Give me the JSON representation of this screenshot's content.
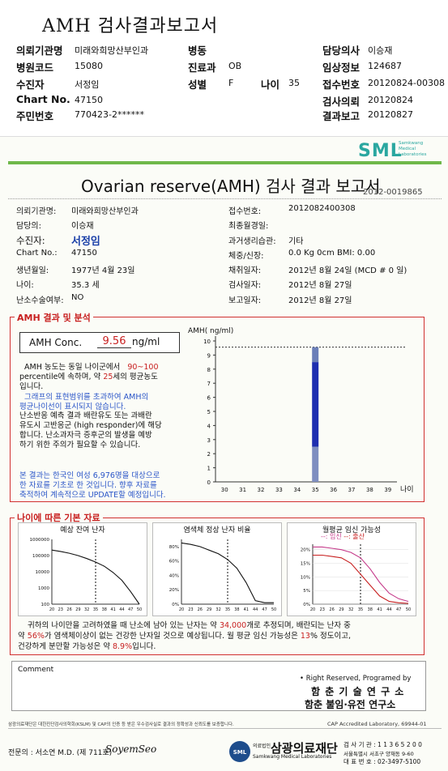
{
  "header": {
    "title": "AMH 검사결과보고서",
    "rows": [
      {
        "l1": "의뢰기관명",
        "v1": "미래와희망산부인과",
        "l2": "병동",
        "v2": "",
        "l4": "담당의사",
        "v4": "이승재"
      },
      {
        "l1": "병원코드",
        "v1": "15080",
        "l2": "진료과",
        "v2": "OB",
        "l4": "임상정보",
        "v4": "124687"
      },
      {
        "l1": "수진자",
        "v1": "서정임",
        "l2": "성별",
        "v2": "F",
        "l3": "나이",
        "v3": "35",
        "l4": "접수번호",
        "v4": "20120824-00308"
      },
      {
        "l1": "Chart No.",
        "v1": "47150",
        "l4": "검사의뢰",
        "v4": "20120824"
      },
      {
        "l1": "주민번호",
        "v1": "770423-2******",
        "l4": "결과보고",
        "v4": "20120827"
      }
    ]
  },
  "report": {
    "logo": "SML",
    "logo_sub": [
      "Samkwang",
      "Medical",
      "Laboratories"
    ],
    "title": "Ovarian reserve(AMH) 검사 결과 보고서",
    "number": "2012-0019865",
    "left_info": [
      {
        "k": "의뢰기관명:",
        "v": "미래와희망산부인과"
      },
      {
        "k": "담당의:",
        "v": "이승재"
      },
      {
        "k": "수진자:",
        "v": "서정임"
      },
      {
        "k": "Chart No.:",
        "v": "47150"
      },
      {
        "k": "생년월일:",
        "v": "1977년 4월 23일"
      },
      {
        "k": "나이:",
        "v": "35.3 세"
      },
      {
        "k": "난소수술여부:",
        "v": "NO"
      }
    ],
    "right_info": [
      {
        "k": "접수번호:",
        "v": "2012082400308"
      },
      {
        "k": "최종월경일:",
        "v": ""
      },
      {
        "k": "과거생리습관:",
        "v": "기타"
      },
      {
        "k": "체중/신장:",
        "v": "0.0 Kg        0cm    BMI:    0.00"
      },
      {
        "k": "채취일자:",
        "v": "2012년 8월 24일    (MCD # 0 일)"
      },
      {
        "k": "검사일자:",
        "v": "2012년 8월 27일"
      },
      {
        "k": "보고일자:",
        "v": "2012년 8월 27일"
      }
    ]
  },
  "amh": {
    "section_title": "AMH 결과 및 분석",
    "conc_label": "AMH Conc.",
    "conc_value": "9.56",
    "conc_unit": "ng/ml",
    "p1": [
      "AMH 농도는 동일 나이군에서",
      "90~100",
      "percentile에 속하며, 약",
      "25",
      "세의 평균농도",
      "입니다."
    ],
    "p2": [
      "그래프의 표현범위를 초과하여 AMH의",
      "평균나이선이 표시되지 않습니다."
    ],
    "p3": [
      "난소반응 예측 결과 배란유도 또는 과배란",
      "유도시 고반응군 (high responder)에 해당",
      "합니다. 난소과자극 증후군의 발생을 예방",
      "하기 위한 주의가 필요할 수 있습니다."
    ],
    "p4": [
      "본 결과는 한국인 여성 6,976명을 대상으로",
      "한 자료를 기초로 한 것입니다. 향후 자료를",
      "축적하여 계속적으로 UPDATE할 예정입니다."
    ]
  },
  "chart_data": [
    {
      "type": "bar",
      "title": "AMH( ng/ml)",
      "xlabel": "나이",
      "ylabel": "AMH( ng/ml)",
      "x_ticks": [
        "30",
        "31",
        "32",
        "33",
        "34",
        "35",
        "36",
        "37",
        "38",
        "39"
      ],
      "y_ticks": [
        "0",
        "1",
        "2",
        "3",
        "4",
        "5",
        "6",
        "7",
        "8",
        "9",
        "10"
      ],
      "ylim": [
        0,
        10
      ],
      "patient_value": 9.56,
      "patient_age": 35,
      "range_bar": {
        "x": 35,
        "low": 0,
        "high": 9.56,
        "segments": [
          {
            "from": 0,
            "to": 2.5
          },
          {
            "from": 2.5,
            "to": 8.5
          },
          {
            "from": 8.5,
            "to": 9.56
          }
        ]
      },
      "colors": {
        "low": "#7f8fc0",
        "mid": "#1f2fb0",
        "top": "#6b7fb8"
      }
    },
    {
      "type": "line",
      "title": "예상 잔여 난자",
      "x_ticks": [
        "20",
        "23",
        "26",
        "29",
        "32",
        "35",
        "38",
        "41",
        "44",
        "47",
        "50"
      ],
      "y_ticks": [
        "100",
        "1000",
        "10000",
        "100000",
        "1000000"
      ],
      "yscale": "log",
      "marker_age": 35,
      "x": [
        20,
        23,
        26,
        29,
        32,
        35,
        38,
        41,
        44,
        47,
        50
      ],
      "y": [
        220000,
        180000,
        140000,
        100000,
        65000,
        40000,
        22000,
        9000,
        3000,
        600,
        100
      ]
    },
    {
      "type": "line",
      "title": "염색체 정상 난자 비율",
      "x_ticks": [
        "20",
        "23",
        "26",
        "29",
        "32",
        "35",
        "38",
        "41",
        "44",
        "47",
        "50"
      ],
      "y_ticks": [
        "0%",
        "20%",
        "40%",
        "60%",
        "80%"
      ],
      "marker_age": 35,
      "x": [
        20,
        23,
        26,
        29,
        32,
        35,
        38,
        41,
        44,
        47,
        50
      ],
      "y": [
        85,
        83,
        80,
        75,
        70,
        62,
        50,
        30,
        5,
        2,
        2
      ]
    },
    {
      "type": "line",
      "title": "월평균 임신 가능성",
      "legend": [
        "임신",
        "출산"
      ],
      "x_ticks": [
        "20",
        "23",
        "26",
        "29",
        "32",
        "35",
        "38",
        "41",
        "44",
        "47",
        "50"
      ],
      "y_ticks": [
        "0%",
        "5%",
        "10%",
        "15%",
        "20%"
      ],
      "marker_age": 35,
      "series": [
        {
          "name": "임신",
          "x": [
            20,
            23,
            26,
            29,
            32,
            35,
            38,
            41,
            44,
            47,
            50
          ],
          "y": [
            21,
            21,
            20.5,
            20,
            19,
            17,
            13,
            8,
            4,
            2,
            1
          ]
        },
        {
          "name": "출산",
          "x": [
            20,
            23,
            26,
            29,
            32,
            35,
            38,
            41,
            44,
            47,
            50
          ],
          "y": [
            18,
            18,
            17.5,
            17,
            15,
            11,
            7,
            3,
            1,
            0.5,
            0.3
          ]
        }
      ]
    }
  ],
  "basic": {
    "section_title": "나이에 따른 기본 자료",
    "chart1_title": "예상 잔여 난자",
    "chart2_title": "염색체 정상 난자 비율",
    "chart3_title": "월평균 임신 가능성",
    "legend_a": "--: 임신",
    "legend_b": "--: 출산",
    "summary1_a": "귀하의 나이만을 고려하였을 때 난소에 남아 있는 난자는 약",
    "summary1_b": "34,000",
    "summary1_c": "개로 추정되며, 배란되는 난자 중",
    "summary2_a": "약",
    "summary2_b": "56%",
    "summary2_c": "가 염색체이상이 없는 건강한 난자일 것으로 예상됩니다. 월 평균 임신 가능성은",
    "summary2_d": "13",
    "summary2_e": "% 정도이고,",
    "summary3_a": "건강하게 분만할 가능성은 약",
    "summary3_b": "8.9%",
    "summary3_c": "입니다."
  },
  "comment_label": "Comment",
  "footer": {
    "rights": "• Right Reserved, Programed by",
    "org1": "함 춘 기 술 연 구 소",
    "org2": "함춘 불임·유전 연구소",
    "cert": "삼광의료재단은 대한진단검사의학회(KSLM) 및 CAP의 인증 등 받은 우수검사실로 결과의 정확성과 신뢰도를 보증합니다.",
    "cap": "CAP Accredited Laboratory, 69944-01",
    "doctor": "전문의 : 서소연 M.D. (제 711호)",
    "signature": "SoyemSeo",
    "foundation_small": "의료법인",
    "foundation": "삼광의료재단",
    "foundation_en": "Samkwang Medical Laboratories",
    "reg": "검 사 기 관 : 1 1 3 6 5 2 0 0",
    "addr": "서울특별시 서초구 양재동 9-60",
    "tel": "대 표 번 호 : 02-3497-5100"
  }
}
